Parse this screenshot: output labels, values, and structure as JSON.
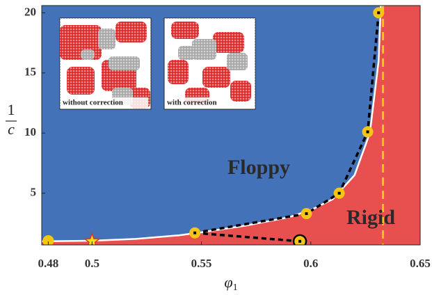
{
  "chart_data": {
    "type": "phase",
    "xlabel": {
      "symbol": "φ",
      "subscript": "1"
    },
    "ylabel": {
      "numerator": "1",
      "denominator": "c"
    },
    "xlim": [
      0.477,
      0.65
    ],
    "ylim": [
      0.7,
      20.6
    ],
    "xticks": [
      0.48,
      0.5,
      0.55,
      0.6,
      0.65
    ],
    "yticks": [
      5,
      10,
      15,
      20
    ],
    "regions": [
      {
        "label": "Floppy",
        "color": "#4472b8"
      },
      {
        "label": "Rigid",
        "color": "#e85050"
      }
    ],
    "phase_boundary": {
      "color": "#ffffff",
      "x": [
        0.477,
        0.5,
        0.52,
        0.54,
        0.55,
        0.57,
        0.59,
        0.6,
        0.61,
        0.62,
        0.627,
        0.631,
        0.632
      ],
      "y": [
        1.0,
        1.05,
        1.2,
        1.5,
        1.75,
        2.3,
        3.0,
        3.6,
        4.5,
        6.5,
        10,
        16,
        20.6
      ]
    },
    "points": {
      "color": "#f5c518",
      "x": [
        0.48,
        0.547,
        0.598,
        0.613,
        0.626,
        0.631
      ],
      "y": [
        1.05,
        1.7,
        3.3,
        5.0,
        10.1,
        20
      ]
    },
    "star": {
      "x": 0.5,
      "y": 1.0
    },
    "corrected_point": {
      "x": 0.595,
      "y": 1.0
    },
    "rigidity_limit": {
      "x": 0.633,
      "color": "#f5c518"
    },
    "insets": [
      "without correction",
      "with correction"
    ]
  }
}
